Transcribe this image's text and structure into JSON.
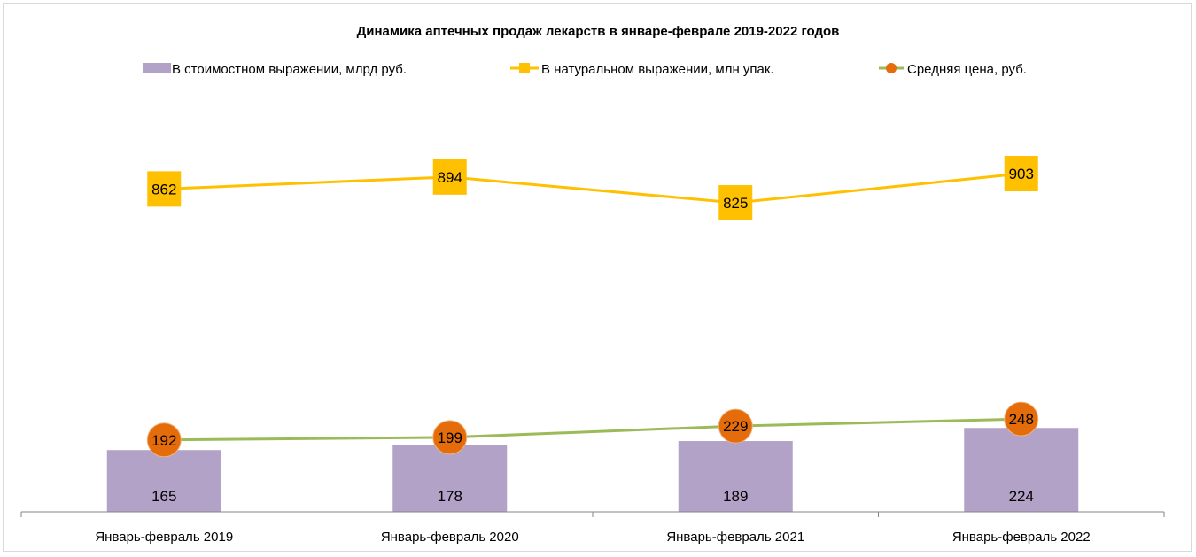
{
  "chart_data": {
    "type": "bar+line",
    "title": "Динамика аптечных продаж лекарств  в январе-феврале 2019-2022 годов",
    "categories": [
      "Январь-февраль 2019",
      "Январь-февраль 2020",
      "Январь-февраль 2021",
      "Январь-февраль 2022"
    ],
    "series": [
      {
        "name": "В стоимостном выражении, млрд руб.",
        "kind": "bar",
        "values": [
          165,
          178,
          189,
          224
        ],
        "color": "#b3a2c7"
      },
      {
        "name": "В натуральном выражении, млн упак.",
        "kind": "line",
        "marker": "square",
        "values": [
          862,
          894,
          825,
          903
        ],
        "color": "#ffc000"
      },
      {
        "name": "Средняя цена, руб.",
        "kind": "line",
        "marker": "circle",
        "values": [
          192,
          199,
          229,
          248
        ],
        "color": "#9bbb59",
        "marker_color": "#e46c0a"
      }
    ],
    "legend_position": "top",
    "grid": false,
    "ylim": [
      0,
      1000
    ]
  }
}
